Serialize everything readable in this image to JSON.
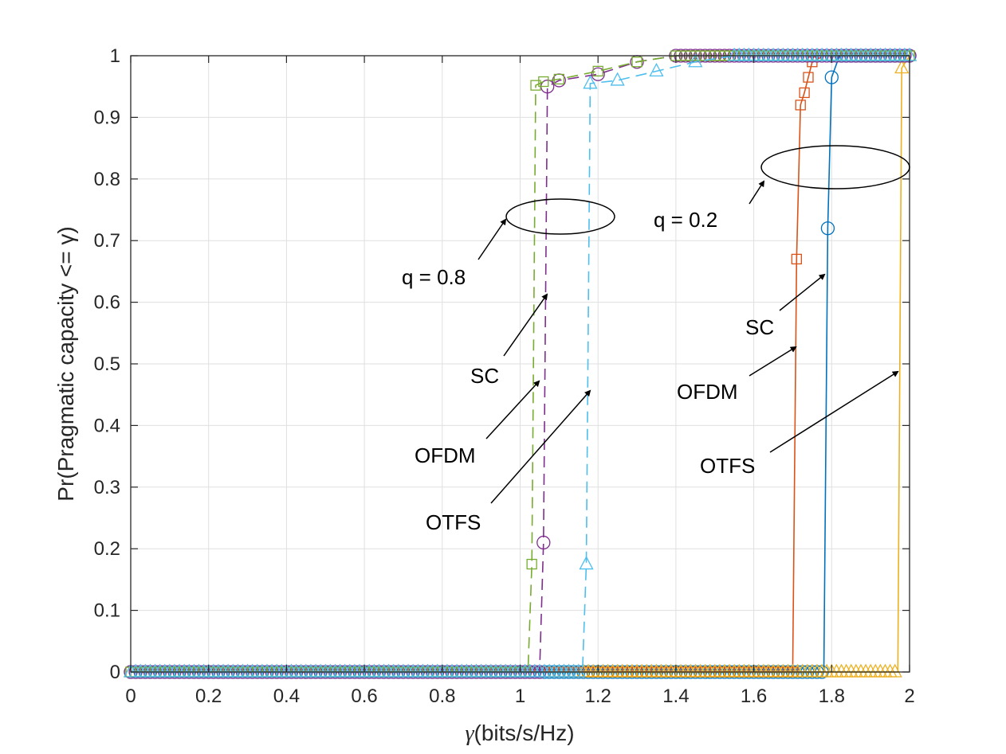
{
  "chart_data": {
    "type": "line",
    "xlabel": "(bits/s/Hz)",
    "xlabel_symbol": "γ",
    "ylabel": "Pr(Pragmatic capacity <= γ)",
    "xlim": [
      0,
      2
    ],
    "ylim": [
      0,
      1
    ],
    "xticks": [
      "0",
      "0.2",
      "0.4",
      "0.6",
      "0.8",
      "1",
      "1.2",
      "1.4",
      "1.6",
      "1.8",
      "2"
    ],
    "yticks": [
      "0",
      "0.1",
      "0.2",
      "0.3",
      "0.4",
      "0.5",
      "0.6",
      "0.7",
      "0.8",
      "0.9",
      "1"
    ],
    "grid": true,
    "series": [
      {
        "color": "#0072BD",
        "dash": "solid",
        "marker": "circle",
        "points": [
          [
            0,
            0
          ],
          [
            1.78,
            0
          ],
          [
            1.79,
            0.72
          ],
          [
            1.8,
            0.965
          ],
          [
            1.82,
            1
          ],
          [
            2,
            1
          ]
        ]
      },
      {
        "color": "#D95319",
        "dash": "solid",
        "marker": "square",
        "points": [
          [
            0,
            0
          ],
          [
            1.7,
            0
          ],
          [
            1.71,
            0.67
          ],
          [
            1.72,
            0.92
          ],
          [
            1.73,
            0.94
          ],
          [
            1.74,
            0.965
          ],
          [
            1.75,
            0.99
          ],
          [
            1.78,
            1
          ],
          [
            2,
            1
          ]
        ]
      },
      {
        "color": "#EDB120",
        "dash": "solid",
        "marker": "triangle",
        "points": [
          [
            0,
            0
          ],
          [
            1.97,
            0
          ],
          [
            1.98,
            0.98
          ],
          [
            2,
            1
          ]
        ]
      },
      {
        "color": "#7E2F8E",
        "dash": "dashed",
        "marker": "circle",
        "points": [
          [
            0,
            0
          ],
          [
            1.05,
            0
          ],
          [
            1.06,
            0.21
          ],
          [
            1.07,
            0.95
          ],
          [
            1.1,
            0.96
          ],
          [
            1.2,
            0.97
          ],
          [
            1.3,
            0.99
          ],
          [
            1.4,
            1
          ],
          [
            2,
            1
          ]
        ]
      },
      {
        "color": "#77AC30",
        "dash": "dashed",
        "marker": "square",
        "points": [
          [
            0,
            0
          ],
          [
            1.02,
            0
          ],
          [
            1.03,
            0.175
          ],
          [
            1.04,
            0.952
          ],
          [
            1.06,
            0.958
          ],
          [
            1.1,
            0.962
          ],
          [
            1.2,
            0.975
          ],
          [
            1.3,
            0.99
          ],
          [
            1.4,
            1
          ],
          [
            2,
            1
          ]
        ]
      },
      {
        "color": "#4DBEEE",
        "dash": "dashed",
        "marker": "triangle",
        "points": [
          [
            0,
            0
          ],
          [
            1.16,
            0
          ],
          [
            1.17,
            0.175
          ],
          [
            1.18,
            0.955
          ],
          [
            1.25,
            0.96
          ],
          [
            1.35,
            0.975
          ],
          [
            1.45,
            0.99
          ],
          [
            1.55,
            1
          ],
          [
            2,
            1
          ]
        ]
      }
    ],
    "annotations": {
      "q_high": "q = 0.8",
      "q_low": "q = 0.2",
      "sc_left": "SC",
      "ofdm_left": "OFDM",
      "otfs_left": "OTFS",
      "sc_right": "SC",
      "ofdm_right": "OFDM",
      "otfs_right": "OTFS"
    }
  }
}
